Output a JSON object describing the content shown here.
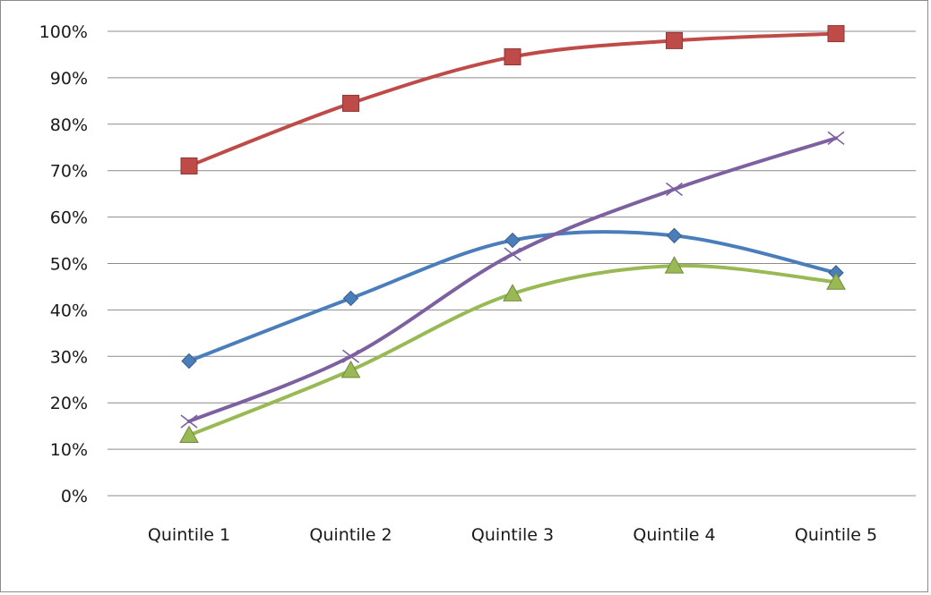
{
  "chart_data": {
    "type": "line",
    "title": "",
    "xlabel": "",
    "ylabel": "",
    "categories": [
      "Quintile 1",
      "Quintile 2",
      "Quintile 3",
      "Quintile 4",
      "Quintile 5"
    ],
    "yticks": [
      "0%",
      "10%",
      "20%",
      "30%",
      "40%",
      "50%",
      "60%",
      "70%",
      "80%",
      "90%",
      "100%"
    ],
    "ylim": [
      0,
      100
    ],
    "grid": true,
    "legend": "none",
    "series": [
      {
        "color": "#4a7ebb",
        "marker": "diamond",
        "values": [
          29,
          42.5,
          55,
          56,
          48
        ]
      },
      {
        "color": "#be4b48",
        "marker": "square",
        "values": [
          71,
          84.5,
          94.5,
          98,
          99.5
        ]
      },
      {
        "color": "#98b954",
        "marker": "triangle",
        "values": [
          13,
          27,
          43.5,
          49.5,
          46
        ]
      },
      {
        "color": "#7d60a0",
        "marker": "x",
        "values": [
          16,
          30,
          52,
          66,
          77
        ]
      }
    ]
  }
}
